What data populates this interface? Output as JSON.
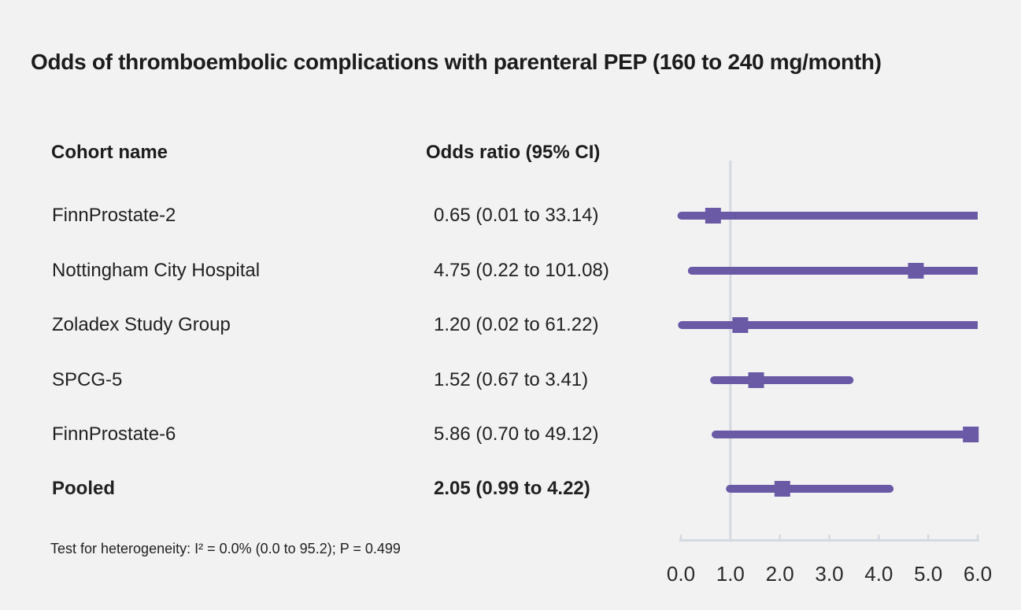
{
  "colors": {
    "background": "#f2f2f3",
    "accent": "#6a5aa6",
    "grid": "#d5d9e1",
    "text": "#1c1c1c",
    "tick_text": "#2a2a2a"
  },
  "chart_data": {
    "type": "forest",
    "title": "Odds of thromboembolic complications with parenteral PEP (160 to 240 mg/month)",
    "col_headers": [
      "Cohort name",
      "Odds ratio (95% CI)"
    ],
    "annotation": "Test for heterogeneity: I² = 0.0% (0.0 to 95.2); P = 0.499",
    "xlabel": "",
    "xlim": [
      0,
      6
    ],
    "xticks": [
      0,
      1,
      2,
      3,
      4,
      5,
      6
    ],
    "tick_labels": [
      "0.0",
      "1.0",
      "2.0",
      "3.0",
      "4.0",
      "5.0",
      "6.0"
    ],
    "reference_line": 1.0,
    "grid": "off",
    "legend": "none",
    "rows": [
      {
        "label": "FinnProstate-2",
        "or_text": "0.65 (0.01 to 33.14)",
        "or": 0.65,
        "ci_low": 0.01,
        "ci_high": 33.14,
        "bold": false
      },
      {
        "label": "Nottingham City Hospital",
        "or_text": "4.75 (0.22 to 101.08)",
        "or": 4.75,
        "ci_low": 0.22,
        "ci_high": 101.08,
        "bold": false
      },
      {
        "label": "Zoladex Study Group",
        "or_text": "1.20 (0.02 to 61.22)",
        "or": 1.2,
        "ci_low": 0.02,
        "ci_high": 61.22,
        "bold": false
      },
      {
        "label": "SPCG-5",
        "or_text": "1.52 (0.67 to 3.41)",
        "or": 1.52,
        "ci_low": 0.67,
        "ci_high": 3.41,
        "bold": false
      },
      {
        "label": "FinnProstate-6",
        "or_text": "5.86 (0.70 to 49.12)",
        "or": 5.86,
        "ci_low": 0.7,
        "ci_high": 49.12,
        "bold": false
      },
      {
        "label": "Pooled",
        "or_text": "2.05 (0.99 to 4.22)",
        "or": 2.05,
        "ci_low": 0.99,
        "ci_high": 4.22,
        "bold": true
      }
    ]
  }
}
